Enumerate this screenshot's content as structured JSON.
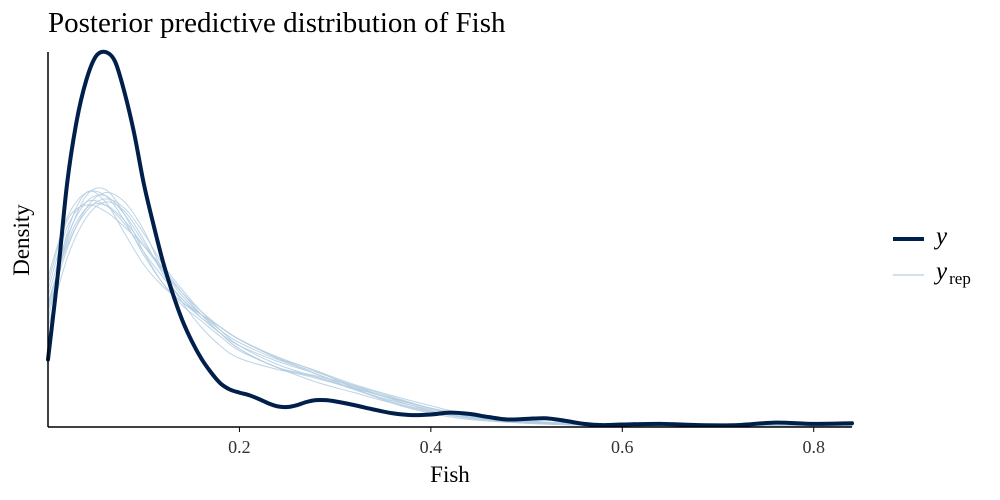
{
  "chart_data": {
    "type": "line",
    "title": "Posterior predictive distribution of Fish",
    "xlabel": "Fish",
    "ylabel": "Density",
    "xlim": [
      0,
      0.84
    ],
    "ylim": [
      0,
      6.0
    ],
    "x_ticks": [
      0.2,
      0.4,
      0.6,
      0.8
    ],
    "x_tick_labels": [
      "0.2",
      "0.4",
      "0.6",
      "0.8"
    ],
    "y_ticks_shown": false,
    "grid": false,
    "legend_position": "right",
    "colors": {
      "y": "#011F4B",
      "yrep": "#B3CDE0"
    },
    "legend": [
      {
        "key": "y",
        "main": "y",
        "sub": ""
      },
      {
        "key": "yrep",
        "main": "y",
        "sub": "rep"
      }
    ],
    "series": [
      {
        "name": "y",
        "x": [
          0.0,
          0.01,
          0.02,
          0.03,
          0.04,
          0.05,
          0.06,
          0.07,
          0.08,
          0.09,
          0.1,
          0.11,
          0.12,
          0.13,
          0.14,
          0.15,
          0.16,
          0.17,
          0.18,
          0.19,
          0.2,
          0.21,
          0.22,
          0.23,
          0.24,
          0.25,
          0.26,
          0.27,
          0.28,
          0.29,
          0.3,
          0.32,
          0.34,
          0.36,
          0.38,
          0.4,
          0.42,
          0.44,
          0.46,
          0.48,
          0.5,
          0.52,
          0.54,
          0.56,
          0.58,
          0.6,
          0.64,
          0.68,
          0.72,
          0.76,
          0.8,
          0.84
        ],
        "values": [
          1.08,
          2.4,
          3.9,
          4.9,
          5.55,
          5.93,
          6.0,
          5.85,
          5.35,
          4.7,
          3.9,
          3.25,
          2.65,
          2.15,
          1.72,
          1.38,
          1.1,
          0.88,
          0.7,
          0.6,
          0.55,
          0.51,
          0.45,
          0.38,
          0.33,
          0.32,
          0.35,
          0.4,
          0.43,
          0.43,
          0.41,
          0.35,
          0.28,
          0.22,
          0.19,
          0.2,
          0.23,
          0.21,
          0.16,
          0.12,
          0.13,
          0.14,
          0.1,
          0.05,
          0.03,
          0.04,
          0.05,
          0.03,
          0.03,
          0.07,
          0.05,
          0.06
        ]
      },
      {
        "name": "yrep",
        "x": [
          0.0,
          0.02,
          0.04,
          0.06,
          0.08,
          0.1,
          0.12,
          0.14,
          0.16,
          0.18,
          0.2,
          0.24,
          0.28,
          0.32,
          0.36,
          0.4,
          0.44,
          0.5,
          0.56,
          0.64,
          0.72,
          0.84
        ],
        "values": [
          2.2,
          3.2,
          3.6,
          3.55,
          3.25,
          2.8,
          2.4,
          2.05,
          1.75,
          1.5,
          1.3,
          1.05,
          0.85,
          0.6,
          0.4,
          0.25,
          0.15,
          0.08,
          0.04,
          0.03,
          0.02,
          0.02
        ]
      },
      {
        "name": "yrep",
        "x": [
          0.0,
          0.02,
          0.04,
          0.06,
          0.08,
          0.1,
          0.12,
          0.14,
          0.16,
          0.18,
          0.2,
          0.24,
          0.28,
          0.32,
          0.36,
          0.4,
          0.44,
          0.5,
          0.56,
          0.64,
          0.72,
          0.84
        ],
        "values": [
          1.9,
          3.0,
          3.7,
          3.8,
          3.4,
          2.8,
          2.3,
          2.0,
          1.8,
          1.6,
          1.4,
          1.1,
          0.9,
          0.62,
          0.38,
          0.22,
          0.12,
          0.06,
          0.03,
          0.02,
          0.01,
          0.01
        ]
      },
      {
        "name": "yrep",
        "x": [
          0.0,
          0.02,
          0.04,
          0.06,
          0.08,
          0.1,
          0.12,
          0.14,
          0.16,
          0.18,
          0.2,
          0.24,
          0.28,
          0.32,
          0.36,
          0.4,
          0.44,
          0.5,
          0.56,
          0.64,
          0.72,
          0.84
        ],
        "values": [
          2.0,
          2.9,
          3.45,
          3.65,
          3.5,
          3.1,
          2.6,
          2.2,
          1.85,
          1.55,
          1.3,
          1.0,
          0.8,
          0.6,
          0.42,
          0.28,
          0.16,
          0.07,
          0.03,
          0.02,
          0.02,
          0.01
        ]
      },
      {
        "name": "yrep",
        "x": [
          0.0,
          0.02,
          0.04,
          0.06,
          0.08,
          0.1,
          0.12,
          0.14,
          0.16,
          0.18,
          0.2,
          0.24,
          0.28,
          0.32,
          0.36,
          0.4,
          0.44,
          0.5,
          0.56,
          0.64,
          0.72,
          0.84
        ],
        "values": [
          1.7,
          3.1,
          3.75,
          3.6,
          3.1,
          2.6,
          2.25,
          2.0,
          1.75,
          1.5,
          1.25,
          0.95,
          0.78,
          0.62,
          0.46,
          0.3,
          0.17,
          0.08,
          0.04,
          0.02,
          0.02,
          0.02
        ]
      },
      {
        "name": "yrep",
        "x": [
          0.0,
          0.02,
          0.04,
          0.06,
          0.08,
          0.1,
          0.12,
          0.14,
          0.16,
          0.18,
          0.2,
          0.24,
          0.28,
          0.32,
          0.36,
          0.4,
          0.44,
          0.5,
          0.56,
          0.64,
          0.72,
          0.84
        ],
        "values": [
          2.3,
          3.3,
          3.55,
          3.45,
          3.2,
          2.9,
          2.55,
          2.15,
          1.8,
          1.5,
          1.25,
          0.95,
          0.82,
          0.66,
          0.48,
          0.3,
          0.18,
          0.09,
          0.05,
          0.03,
          0.02,
          0.02
        ]
      },
      {
        "name": "yrep",
        "x": [
          0.0,
          0.02,
          0.04,
          0.06,
          0.08,
          0.1,
          0.12,
          0.14,
          0.16,
          0.18,
          0.2,
          0.24,
          0.28,
          0.32,
          0.36,
          0.4,
          0.44,
          0.5,
          0.56,
          0.64,
          0.72,
          0.84
        ],
        "values": [
          1.85,
          2.85,
          3.5,
          3.75,
          3.6,
          3.15,
          2.5,
          2.0,
          1.6,
          1.3,
          1.1,
          0.92,
          0.8,
          0.62,
          0.45,
          0.3,
          0.2,
          0.1,
          0.05,
          0.03,
          0.02,
          0.02
        ]
      },
      {
        "name": "yrep",
        "x": [
          0.0,
          0.02,
          0.04,
          0.06,
          0.08,
          0.1,
          0.12,
          0.14,
          0.16,
          0.18,
          0.2,
          0.24,
          0.28,
          0.32,
          0.36,
          0.4,
          0.44,
          0.5,
          0.56,
          0.64,
          0.72,
          0.84
        ],
        "values": [
          2.1,
          3.05,
          3.6,
          3.7,
          3.4,
          2.95,
          2.5,
          2.1,
          1.8,
          1.55,
          1.35,
          1.08,
          0.88,
          0.66,
          0.44,
          0.26,
          0.14,
          0.06,
          0.03,
          0.02,
          0.01,
          0.01
        ]
      },
      {
        "name": "yrep",
        "x": [
          0.0,
          0.02,
          0.04,
          0.06,
          0.08,
          0.1,
          0.12,
          0.14,
          0.16,
          0.18,
          0.2,
          0.24,
          0.28,
          0.32,
          0.36,
          0.4,
          0.44,
          0.5,
          0.56,
          0.64,
          0.72,
          0.84
        ],
        "values": [
          1.6,
          2.7,
          3.35,
          3.6,
          3.45,
          3.0,
          2.45,
          2.05,
          1.8,
          1.6,
          1.4,
          1.1,
          0.85,
          0.64,
          0.46,
          0.3,
          0.18,
          0.09,
          0.04,
          0.02,
          0.02,
          0.01
        ]
      },
      {
        "name": "yrep",
        "x": [
          0.0,
          0.02,
          0.04,
          0.06,
          0.08,
          0.1,
          0.12,
          0.14,
          0.16,
          0.18,
          0.2,
          0.24,
          0.28,
          0.32,
          0.36,
          0.4,
          0.44,
          0.5,
          0.56,
          0.64,
          0.72,
          0.84
        ],
        "values": [
          2.4,
          3.35,
          3.75,
          3.7,
          3.3,
          2.75,
          2.3,
          1.95,
          1.7,
          1.45,
          1.22,
          0.95,
          0.72,
          0.55,
          0.38,
          0.24,
          0.14,
          0.07,
          0.03,
          0.02,
          0.02,
          0.02
        ]
      },
      {
        "name": "yrep",
        "x": [
          0.0,
          0.02,
          0.04,
          0.06,
          0.08,
          0.1,
          0.12,
          0.14,
          0.16,
          0.18,
          0.2,
          0.24,
          0.28,
          0.32,
          0.36,
          0.4,
          0.44,
          0.5,
          0.56,
          0.64,
          0.72,
          0.84
        ],
        "values": [
          1.95,
          2.95,
          3.5,
          3.55,
          3.3,
          2.9,
          2.5,
          2.15,
          1.85,
          1.6,
          1.4,
          1.12,
          0.9,
          0.68,
          0.5,
          0.34,
          0.2,
          0.1,
          0.05,
          0.03,
          0.02,
          0.02
        ]
      }
    ]
  }
}
